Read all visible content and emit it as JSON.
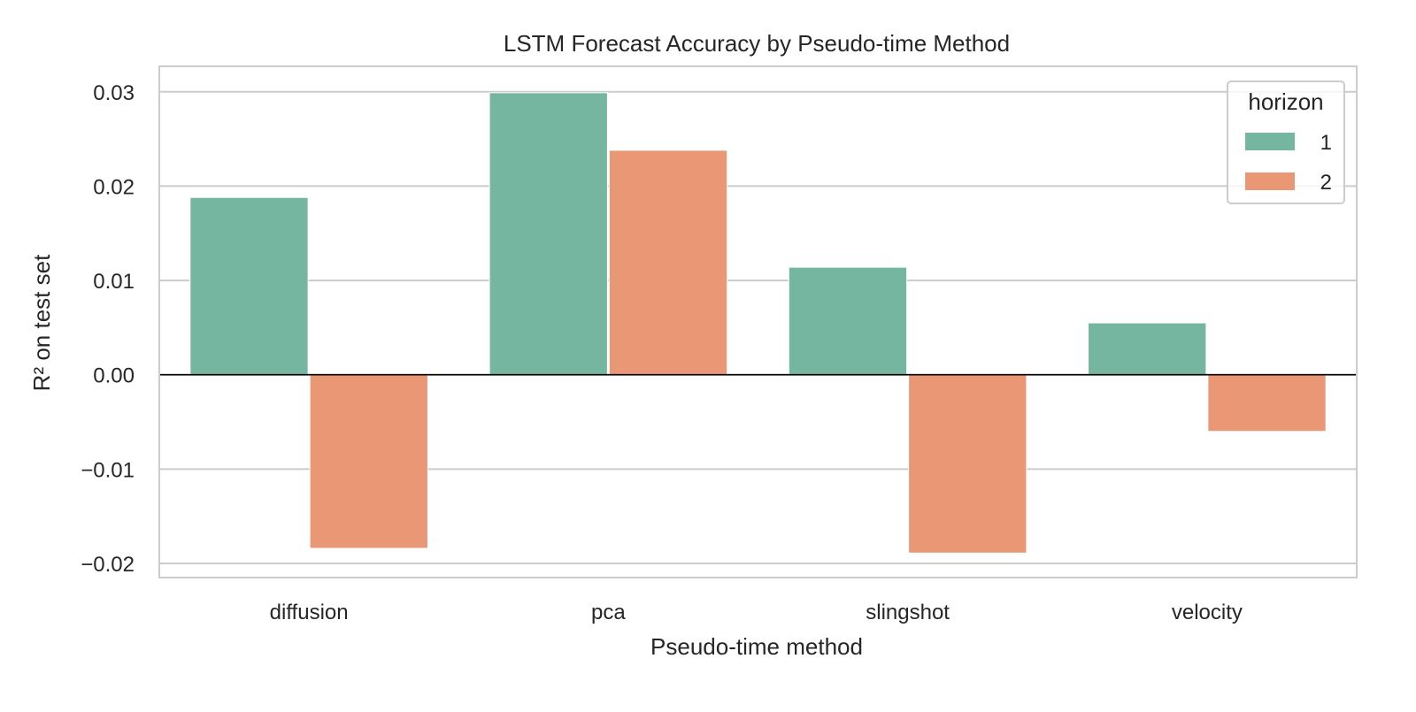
{
  "chart_data": {
    "type": "bar",
    "title": "LSTM Forecast Accuracy by Pseudo-time Method",
    "xlabel": "Pseudo-time method",
    "ylabel": "R² on test set",
    "categories": [
      "diffusion",
      "pca",
      "slingshot",
      "velocity"
    ],
    "series": [
      {
        "name": "1",
        "color": "#74b6a0",
        "values": [
          0.0188,
          0.0299,
          0.0114,
          0.0055
        ]
      },
      {
        "name": "2",
        "color": "#ea9775",
        "values": [
          -0.0184,
          0.0238,
          -0.0189,
          -0.006
        ]
      }
    ],
    "ylim": [
      -0.0215,
      0.0327
    ],
    "yticks": [
      -0.02,
      -0.01,
      0.0,
      0.01,
      0.02,
      0.03
    ],
    "ytick_labels": [
      "−0.02",
      "−0.01",
      "0.00",
      "0.01",
      "0.02",
      "0.03"
    ],
    "grid": true,
    "zero_line": true,
    "legend": {
      "title": "horizon",
      "position": "top-right"
    }
  }
}
